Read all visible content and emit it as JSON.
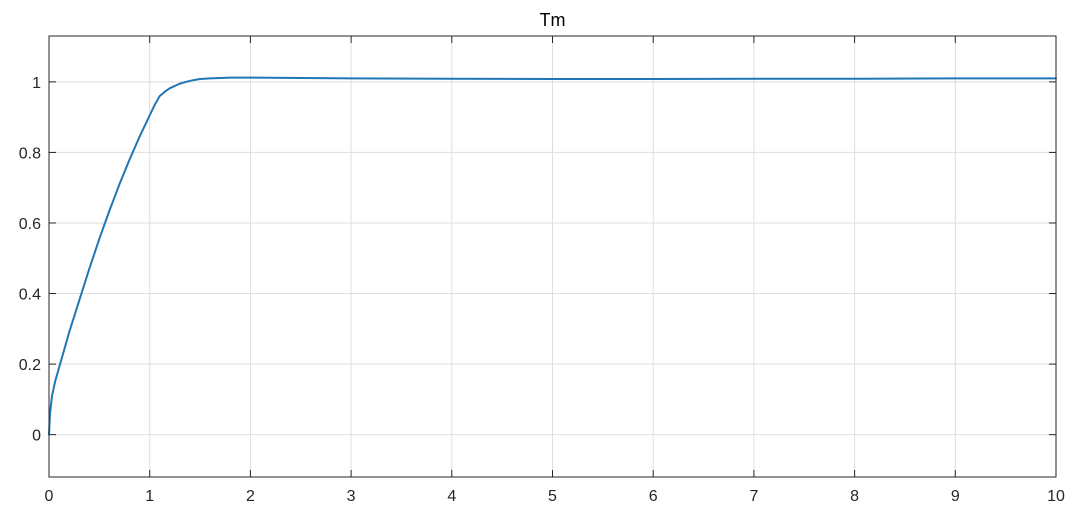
{
  "chart_data": {
    "type": "line",
    "title": "Tm",
    "xlabel": "",
    "ylabel": "",
    "xlim": [
      0,
      10
    ],
    "ylim": [
      -0.12,
      1.13
    ],
    "grid": true,
    "legend": "none",
    "x_ticks": [
      0,
      1,
      2,
      3,
      4,
      5,
      6,
      7,
      8,
      9,
      10
    ],
    "x_tick_labels": [
      "0",
      "1",
      "2",
      "3",
      "4",
      "5",
      "6",
      "7",
      "8",
      "9",
      "10"
    ],
    "y_ticks": [
      0,
      0.2,
      0.4,
      0.6,
      0.8,
      1
    ],
    "y_tick_labels": [
      "0",
      "0.2",
      "0.4",
      "0.6",
      "0.8",
      "1"
    ],
    "series": [
      {
        "color": "#1f77b4",
        "x": [
          0,
          0.01,
          0.03,
          0.06,
          0.1,
          0.15,
          0.2,
          0.3,
          0.4,
          0.5,
          0.6,
          0.7,
          0.8,
          0.9,
          1.0,
          1.05,
          1.1,
          1.15,
          1.2,
          1.3,
          1.4,
          1.5,
          1.6,
          1.8,
          2.0,
          2.5,
          3.0,
          4.0,
          5.0,
          6.0,
          7.0,
          8.0,
          9.0,
          10.0
        ],
        "y": [
          0,
          0.06,
          0.11,
          0.15,
          0.19,
          0.24,
          0.29,
          0.38,
          0.47,
          0.555,
          0.635,
          0.71,
          0.78,
          0.845,
          0.905,
          0.935,
          0.96,
          0.972,
          0.982,
          0.995,
          1.003,
          1.008,
          1.01,
          1.012,
          1.012,
          1.011,
          1.01,
          1.009,
          1.008,
          1.008,
          1.009,
          1.009,
          1.01,
          1.01
        ]
      }
    ]
  }
}
